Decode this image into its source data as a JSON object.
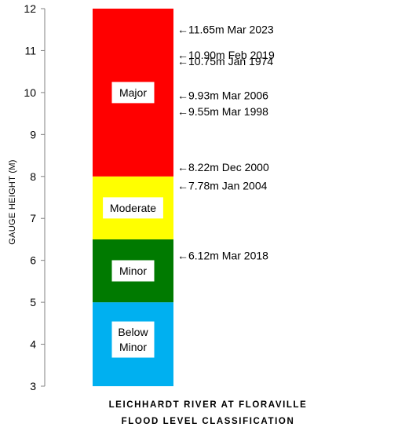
{
  "chart_data": {
    "type": "bar",
    "ylabel": "GAUGE HEIGHT (M)",
    "ylim": [
      3,
      12
    ],
    "yticks": [
      3,
      4,
      5,
      6,
      7,
      8,
      9,
      10,
      11,
      12
    ],
    "grid": false,
    "bands": [
      {
        "label": "Below Minor",
        "lines": [
          "Below",
          "Minor"
        ],
        "from": 3,
        "to": 5,
        "color": "#00b0f0"
      },
      {
        "label": "Minor",
        "lines": [
          "Minor"
        ],
        "from": 5,
        "to": 6.5,
        "color": "#007a00"
      },
      {
        "label": "Moderate",
        "lines": [
          "Moderate"
        ],
        "from": 6.5,
        "to": 8,
        "color": "#ffff00"
      },
      {
        "label": "Major",
        "lines": [
          "Major"
        ],
        "from": 8,
        "to": 12,
        "color": "#ff0000"
      }
    ],
    "annotations": [
      {
        "text": "11.65m Mar 2023",
        "value": 11.65
      },
      {
        "text": "10.90m Feb 2019",
        "value": 10.9
      },
      {
        "text": "10.75m Jan 1974",
        "value": 10.75
      },
      {
        "text": "9.93m Mar 2006",
        "value": 9.93
      },
      {
        "text": "9.55m Mar 1998",
        "value": 9.55
      },
      {
        "text": "8.22m Dec 2000",
        "value": 8.22
      },
      {
        "text": "7.78m Jan 2004",
        "value": 7.78
      },
      {
        "text": "6.12m Mar 2018",
        "value": 6.12
      }
    ]
  },
  "caption": {
    "line1": "LEICHHARDT RIVER AT FLORAVILLE",
    "line2": "FLOOD LEVEL CLASSIFICATION"
  }
}
